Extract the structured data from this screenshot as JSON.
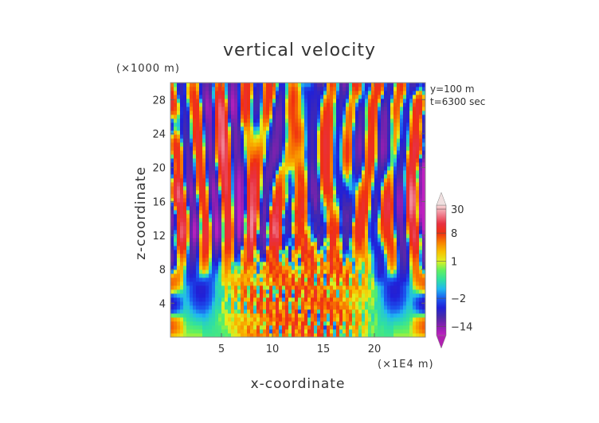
{
  "chart_data": {
    "type": "heatmap",
    "title": "vertical velocity",
    "xlabel": "x-coordinate",
    "ylabel": "z-coordinate",
    "x_unit": "(×1E4 m)",
    "y_unit": "(×1000 m)",
    "annotations": [
      "y=100 m",
      "t=6300 sec"
    ],
    "xlim": [
      0,
      25
    ],
    "ylim": [
      0,
      30
    ],
    "xticks": [
      5,
      10,
      15,
      20
    ],
    "yticks": [
      4,
      8,
      12,
      16,
      20,
      24,
      28
    ],
    "xtick_labels": [
      "5",
      "10",
      "15",
      "20"
    ],
    "ytick_labels": [
      "4",
      "8",
      "12",
      "16",
      "20",
      "24",
      "28"
    ],
    "colorbar": {
      "range": [
        -20,
        36
      ],
      "tick_values": [
        30,
        8,
        1,
        -2,
        -14
      ],
      "tick_labels": [
        "30",
        "8",
        "1",
        "−2",
        "−14"
      ],
      "extend": "both",
      "stops": [
        {
          "v": -20,
          "c": "#c020c0"
        },
        {
          "v": -14,
          "c": "#8a1fb0"
        },
        {
          "v": -8,
          "c": "#4a2aa8"
        },
        {
          "v": -4,
          "c": "#2020d8"
        },
        {
          "v": -2,
          "c": "#1a5cf0"
        },
        {
          "v": -1,
          "c": "#20b8f0"
        },
        {
          "v": 0,
          "c": "#30e0a0"
        },
        {
          "v": 0.5,
          "c": "#60f060"
        },
        {
          "v": 1,
          "c": "#e0f020"
        },
        {
          "v": 2,
          "c": "#f8c000"
        },
        {
          "v": 4,
          "c": "#f88000"
        },
        {
          "v": 8,
          "c": "#f03010"
        },
        {
          "v": 15,
          "c": "#e83040"
        },
        {
          "v": 22,
          "c": "#f08090"
        },
        {
          "v": 36,
          "c": "#f8d8d8"
        }
      ],
      "colors": {
        "min_arrow": "#b020b0",
        "max_arrow": "#f0e0e0"
      }
    }
  }
}
